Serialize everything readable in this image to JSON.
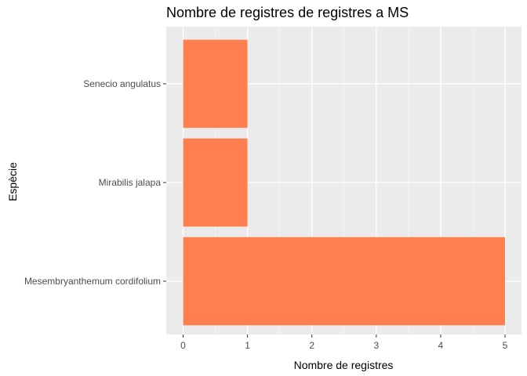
{
  "chart_data": {
    "type": "bar",
    "orientation": "horizontal",
    "title": "Nombre de registres de registres a MS",
    "xlabel": "Nombre de registres",
    "ylabel": "Espècie",
    "categories": [
      "Mesembryanthemum cordifolium",
      "Mirabilis jalapa",
      "Senecio angulatus"
    ],
    "values": [
      5,
      1,
      1
    ],
    "xlim": [
      0,
      5
    ],
    "xticks": [
      0,
      1,
      2,
      3,
      4,
      5
    ],
    "bar_color": "#FF7F50",
    "panel_background": "#EBEBEB",
    "grid": true
  }
}
